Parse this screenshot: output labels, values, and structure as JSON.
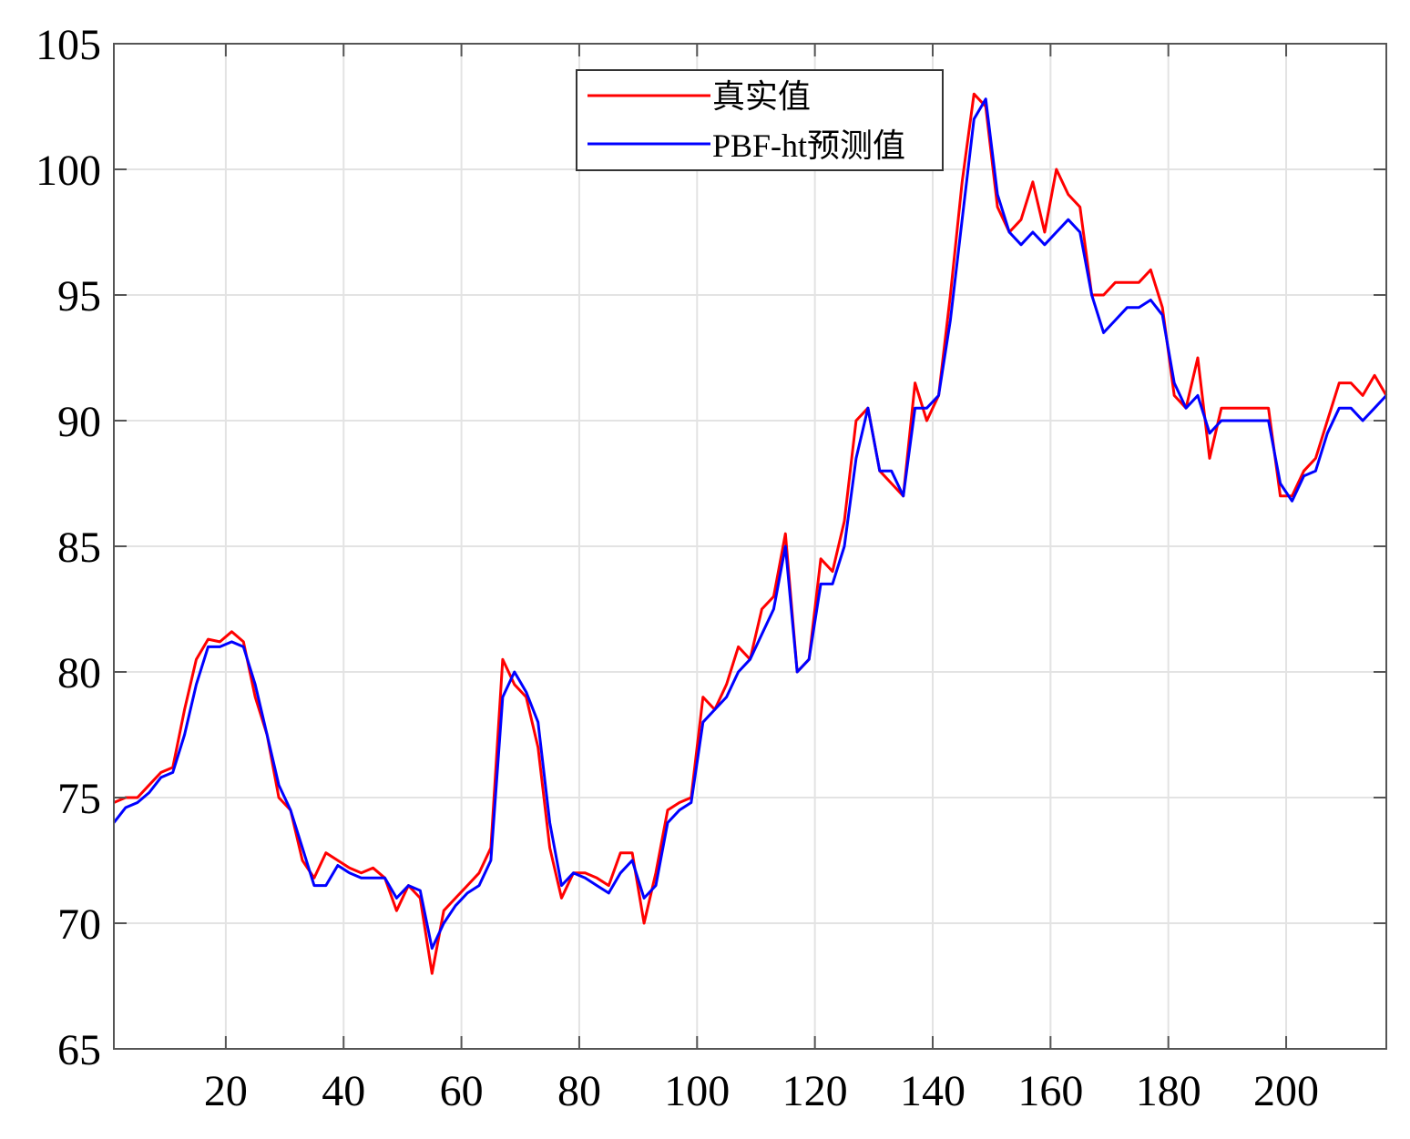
{
  "chart_data": {
    "type": "line",
    "title": "",
    "xlabel": "",
    "ylabel": "",
    "xlim": [
      1,
      217
    ],
    "ylim": [
      65,
      105
    ],
    "xticks": [
      20,
      40,
      60,
      80,
      100,
      120,
      140,
      160,
      180,
      200
    ],
    "yticks": [
      65,
      70,
      75,
      80,
      85,
      90,
      95,
      100,
      105
    ],
    "grid": true,
    "legend_position": "top-center",
    "series": [
      {
        "name": "真实值",
        "color": "#ff0000",
        "x": [
          1,
          3,
          5,
          7,
          9,
          11,
          13,
          15,
          17,
          19,
          21,
          23,
          25,
          27,
          29,
          31,
          33,
          35,
          37,
          39,
          41,
          43,
          45,
          47,
          49,
          51,
          53,
          55,
          57,
          59,
          61,
          63,
          65,
          67,
          69,
          71,
          73,
          75,
          77,
          79,
          81,
          83,
          85,
          87,
          89,
          91,
          93,
          95,
          97,
          99,
          101,
          103,
          105,
          107,
          109,
          111,
          113,
          115,
          117,
          119,
          121,
          123,
          125,
          127,
          129,
          131,
          133,
          135,
          137,
          139,
          141,
          143,
          145,
          147,
          149,
          151,
          153,
          155,
          157,
          159,
          161,
          163,
          165,
          167,
          169,
          171,
          173,
          175,
          177,
          179,
          181,
          183,
          185,
          187,
          189,
          191,
          193,
          195,
          197,
          199,
          201,
          203,
          205,
          207,
          209,
          211,
          213,
          215,
          217
        ],
        "y": [
          74.8,
          75.0,
          75.0,
          75.5,
          76.0,
          76.2,
          78.5,
          80.5,
          81.3,
          81.2,
          81.6,
          81.2,
          79.0,
          77.5,
          75.0,
          74.5,
          72.5,
          71.8,
          72.8,
          72.5,
          72.2,
          72.0,
          72.2,
          71.8,
          70.5,
          71.5,
          71.0,
          68.0,
          70.5,
          71.0,
          71.5,
          72.0,
          73.0,
          80.5,
          79.5,
          79.0,
          77.0,
          73.0,
          71.0,
          72.0,
          72.0,
          71.8,
          71.5,
          72.8,
          72.8,
          70.0,
          72.0,
          74.5,
          74.8,
          75.0,
          79.0,
          78.5,
          79.5,
          81.0,
          80.5,
          82.5,
          83.0,
          85.5,
          80.0,
          80.5,
          84.5,
          84.0,
          86.0,
          90.0,
          90.5,
          88.0,
          87.5,
          87.0,
          91.5,
          90.0,
          91.0,
          95.0,
          99.5,
          103.0,
          102.5,
          98.5,
          97.5,
          98.0,
          99.5,
          97.5,
          100.0,
          99.0,
          98.5,
          95.0,
          95.0,
          95.5,
          95.5,
          95.5,
          96.0,
          94.5,
          91.0,
          90.5,
          92.5,
          88.5,
          90.5,
          90.5,
          90.5,
          90.5,
          90.5,
          87.0,
          87.0,
          88.0,
          88.5,
          90.0,
          91.5,
          91.5,
          91.0,
          91.8,
          91.0
        ]
      },
      {
        "name": "PBF-ht预测值",
        "color": "#0000ff",
        "x": [
          1,
          3,
          5,
          7,
          9,
          11,
          13,
          15,
          17,
          19,
          21,
          23,
          25,
          27,
          29,
          31,
          33,
          35,
          37,
          39,
          41,
          43,
          45,
          47,
          49,
          51,
          53,
          55,
          57,
          59,
          61,
          63,
          65,
          67,
          69,
          71,
          73,
          75,
          77,
          79,
          81,
          83,
          85,
          87,
          89,
          91,
          93,
          95,
          97,
          99,
          101,
          103,
          105,
          107,
          109,
          111,
          113,
          115,
          117,
          119,
          121,
          123,
          125,
          127,
          129,
          131,
          133,
          135,
          137,
          139,
          141,
          143,
          145,
          147,
          149,
          151,
          153,
          155,
          157,
          159,
          161,
          163,
          165,
          167,
          169,
          171,
          173,
          175,
          177,
          179,
          181,
          183,
          185,
          187,
          189,
          191,
          193,
          195,
          197,
          199,
          201,
          203,
          205,
          207,
          209,
          211,
          213,
          215,
          217
        ],
        "y": [
          74.0,
          74.6,
          74.8,
          75.2,
          75.8,
          76.0,
          77.5,
          79.5,
          81.0,
          81.0,
          81.2,
          81.0,
          79.5,
          77.5,
          75.5,
          74.5,
          73.0,
          71.5,
          71.5,
          72.3,
          72.0,
          71.8,
          71.8,
          71.8,
          71.0,
          71.5,
          71.3,
          69.0,
          70.0,
          70.7,
          71.2,
          71.5,
          72.5,
          79.0,
          80.0,
          79.2,
          78.0,
          74.0,
          71.5,
          72.0,
          71.8,
          71.5,
          71.2,
          72.0,
          72.5,
          71.0,
          71.5,
          74.0,
          74.5,
          74.8,
          78.0,
          78.5,
          79.0,
          80.0,
          80.5,
          81.5,
          82.5,
          85.0,
          80.0,
          80.5,
          83.5,
          83.5,
          85.0,
          88.5,
          90.5,
          88.0,
          88.0,
          87.0,
          90.5,
          90.5,
          91.0,
          94.0,
          98.0,
          102.0,
          102.8,
          99.0,
          97.5,
          97.0,
          97.5,
          97.0,
          97.5,
          98.0,
          97.5,
          95.0,
          93.5,
          94.0,
          94.5,
          94.5,
          94.8,
          94.2,
          91.5,
          90.5,
          91.0,
          89.5,
          90.0,
          90.0,
          90.0,
          90.0,
          90.0,
          87.5,
          86.8,
          87.8,
          88.0,
          89.5,
          90.5,
          90.5,
          90.0,
          90.5,
          91.0
        ]
      }
    ]
  }
}
